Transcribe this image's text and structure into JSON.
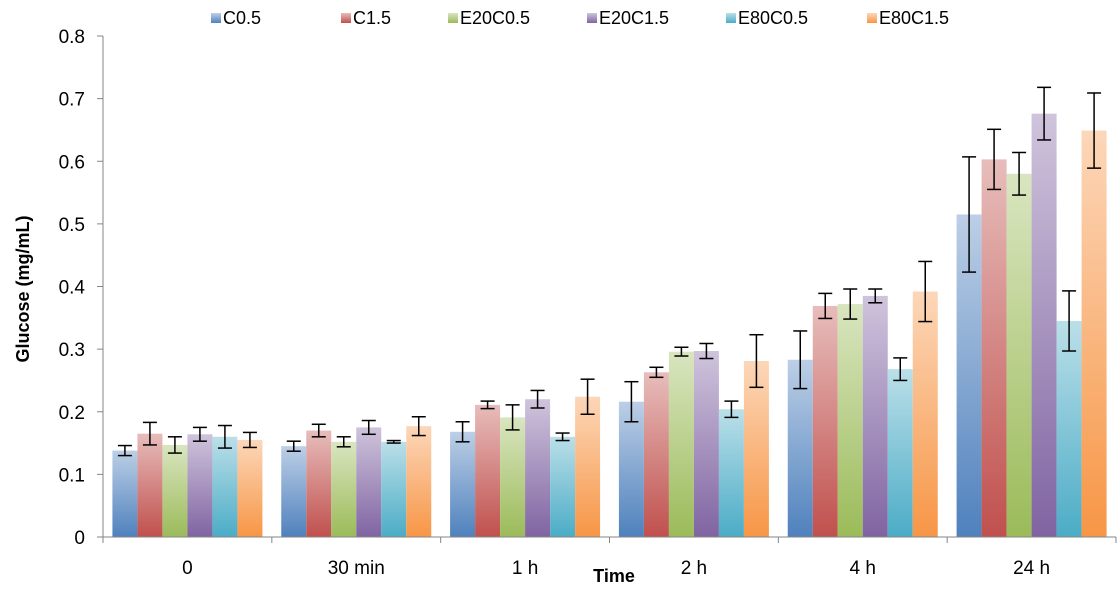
{
  "chart_data": {
    "type": "bar",
    "xlabel": "Time",
    "ylabel": "Glucose (mg/mL)",
    "ylim": [
      0,
      0.8
    ],
    "yticks": [
      "0",
      "0.1",
      "0.2",
      "0.3",
      "0.4",
      "0.5",
      "0.6",
      "0.7",
      "0.8"
    ],
    "grid": false,
    "legend_position": "top",
    "categories": [
      "0",
      "30 min",
      "1 h",
      "2 h",
      "4 h",
      "24 h"
    ],
    "series": [
      {
        "name": "C0.5",
        "color": "#4F81BD",
        "values": [
          0.138,
          0.145,
          0.168,
          0.216,
          0.283,
          0.515
        ],
        "errors": [
          0.008,
          0.008,
          0.016,
          0.032,
          0.046,
          0.092
        ]
      },
      {
        "name": "C1.5",
        "color": "#C0504D",
        "values": [
          0.165,
          0.17,
          0.211,
          0.263,
          0.369,
          0.603
        ],
        "errors": [
          0.018,
          0.01,
          0.006,
          0.008,
          0.02,
          0.048
        ]
      },
      {
        "name": "E20C0.5",
        "color": "#9BBB59",
        "values": [
          0.147,
          0.152,
          0.191,
          0.296,
          0.372,
          0.58
        ],
        "errors": [
          0.013,
          0.008,
          0.02,
          0.007,
          0.024,
          0.034
        ]
      },
      {
        "name": "E20C1.5",
        "color": "#8064A2",
        "values": [
          0.164,
          0.175,
          0.22,
          0.297,
          0.385,
          0.676
        ],
        "errors": [
          0.011,
          0.011,
          0.014,
          0.012,
          0.011,
          0.042
        ]
      },
      {
        "name": "E80C0.5",
        "color": "#4BACC6",
        "values": [
          0.16,
          0.152,
          0.16,
          0.204,
          0.268,
          0.345
        ],
        "errors": [
          0.018,
          0.002,
          0.006,
          0.013,
          0.018,
          0.048
        ]
      },
      {
        "name": "E80C1.5",
        "color": "#F79646",
        "values": [
          0.155,
          0.177,
          0.224,
          0.281,
          0.392,
          0.649
        ],
        "errors": [
          0.012,
          0.015,
          0.028,
          0.042,
          0.048,
          0.06
        ]
      }
    ]
  }
}
